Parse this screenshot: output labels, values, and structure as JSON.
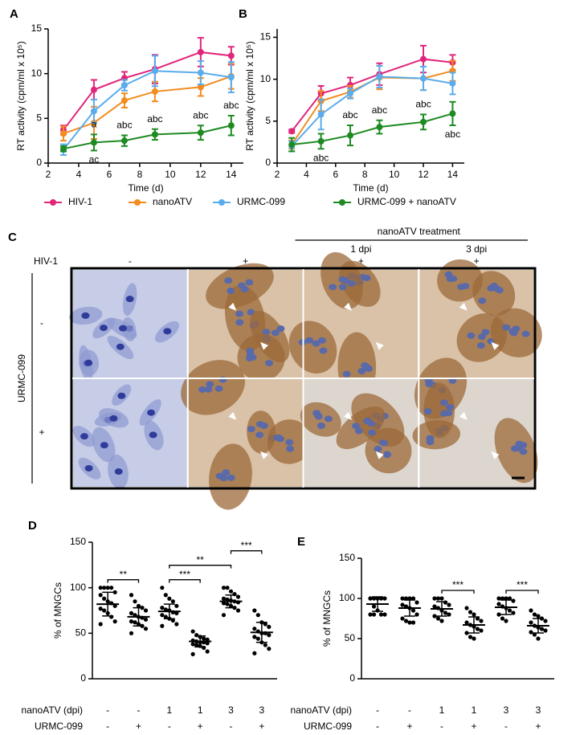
{
  "chart_data": [
    {
      "type": "line",
      "label": "A",
      "xlabel": "Time (d)",
      "ylabel": "RT activity (cpm/ml x 10⁵)",
      "x": [
        3,
        5,
        7,
        9,
        12,
        14
      ],
      "xlim": [
        2,
        14.8
      ],
      "xticks": [
        2,
        4,
        6,
        8,
        10,
        12,
        14
      ],
      "ylim": [
        0,
        15
      ],
      "yticks": [
        0,
        5,
        10,
        15
      ],
      "series": [
        {
          "name": "HIV-1",
          "color": "#e0267a",
          "values": [
            3.7,
            8.2,
            9.5,
            10.5,
            12.4,
            12.0
          ],
          "errors": [
            0.5,
            1.1,
            0.7,
            1.6,
            1.6,
            1.0
          ]
        },
        {
          "name": "nanoATV",
          "color": "#f28c1e",
          "values": [
            3.3,
            4.5,
            7.0,
            8.0,
            8.5,
            9.7
          ],
          "errors": [
            0.8,
            1.8,
            0.8,
            1.1,
            1.0,
            1.4
          ]
        },
        {
          "name": "URMC-099",
          "color": "#5aacec",
          "values": [
            1.5,
            5.8,
            8.7,
            10.3,
            10.1,
            9.6
          ],
          "errors": [
            0.6,
            1.3,
            0.6,
            1.7,
            1.3,
            1.7
          ]
        },
        {
          "name": "URMC-099 + nanoATV",
          "color": "#1e8a22",
          "values": [
            1.6,
            2.3,
            2.5,
            3.2,
            3.4,
            4.2
          ],
          "errors": [
            0.3,
            0.9,
            0.6,
            0.6,
            0.8,
            1.1
          ]
        }
      ],
      "annotations": [
        {
          "text": "a",
          "x": 5,
          "position": "above"
        },
        {
          "text": "ac",
          "x": 5,
          "position": "below"
        },
        {
          "text": "abc",
          "x": 7,
          "position": "above"
        },
        {
          "text": "abc",
          "x": 9,
          "position": "above"
        },
        {
          "text": "abc",
          "x": 12,
          "position": "above"
        },
        {
          "text": "abc",
          "x": 14,
          "position": "above"
        }
      ]
    },
    {
      "type": "line",
      "label": "B",
      "xlabel": "Time (d)",
      "ylabel": "RT activity (cpm/ml x 10⁵)",
      "x": [
        3,
        5,
        7,
        9,
        12,
        14
      ],
      "xlim": [
        2,
        14.8
      ],
      "xticks": [
        2,
        4,
        6,
        8,
        10,
        12,
        14
      ],
      "ylim": [
        0,
        16
      ],
      "yticks": [
        0,
        5,
        10,
        15
      ],
      "series": [
        {
          "color": "#e0267a",
          "values": [
            3.8,
            8.3,
            9.3,
            10.6,
            12.4,
            12.0
          ],
          "errors": [
            0.2,
            0.9,
            0.9,
            1.3,
            1.6,
            0.9
          ]
        },
        {
          "color": "#f28c1e",
          "values": [
            2.2,
            7.4,
            8.5,
            10.2,
            10.1,
            11.0
          ],
          "errors": [
            0.5,
            1.2,
            0.7,
            1.4,
            1.4,
            1.2
          ]
        },
        {
          "color": "#5aacec",
          "values": [
            2.0,
            5.8,
            8.3,
            10.3,
            10.1,
            9.5
          ],
          "errors": [
            0.6,
            1.8,
            0.6,
            1.3,
            1.4,
            1.3
          ]
        },
        {
          "color": "#1e8a22",
          "values": [
            2.2,
            2.6,
            3.3,
            4.3,
            4.9,
            5.9
          ],
          "errors": [
            0.8,
            0.9,
            1.2,
            0.8,
            0.9,
            1.4
          ]
        }
      ],
      "annotations": [
        {
          "text": "abc",
          "x": 5,
          "position": "below"
        },
        {
          "text": "abc",
          "x": 7,
          "position": "above"
        },
        {
          "text": "abc",
          "x": 9,
          "position": "above"
        },
        {
          "text": "abc",
          "x": 12,
          "position": "above"
        },
        {
          "text": "abc",
          "x": 14,
          "position": "below"
        }
      ]
    },
    {
      "type": "dot",
      "label": "D",
      "ylabel": "% of MNGCs",
      "ylim": [
        0,
        150
      ],
      "yticks": [
        0,
        50,
        100,
        150
      ],
      "rows": [
        {
          "name": "nanoATV (dpi)",
          "labels": [
            "-",
            "-",
            "1",
            "1",
            "3",
            "3"
          ]
        },
        {
          "name": "URMC-099",
          "labels": [
            "-",
            "+",
            "-",
            "+",
            "-",
            "+"
          ]
        }
      ],
      "groups": [
        {
          "values": [
            100,
            100,
            100,
            100,
            95,
            92,
            88,
            85,
            83,
            80,
            77,
            75,
            72,
            68,
            63,
            60
          ],
          "mean": 82,
          "sd": 13
        },
        {
          "values": [
            92,
            85,
            80,
            78,
            75,
            72,
            70,
            68,
            67,
            65,
            63,
            62,
            60,
            58,
            55,
            50
          ],
          "mean": 68,
          "sd": 10
        },
        {
          "values": [
            100,
            92,
            88,
            85,
            80,
            78,
            76,
            75,
            73,
            72,
            70,
            68,
            66,
            64,
            60,
            58
          ],
          "mean": 74,
          "sd": 8
        },
        {
          "values": [
            52,
            48,
            46,
            44,
            43,
            42,
            41,
            40,
            40,
            39,
            38,
            37,
            36,
            34,
            30,
            27
          ],
          "mean": 41,
          "sd": 6
        },
        {
          "values": [
            100,
            100,
            96,
            93,
            90,
            88,
            87,
            86,
            85,
            84,
            83,
            82,
            80,
            78,
            75,
            70
          ],
          "mean": 85,
          "sd": 7
        },
        {
          "values": [
            75,
            70,
            62,
            60,
            57,
            55,
            52,
            50,
            50,
            48,
            46,
            44,
            40,
            37,
            33,
            28
          ],
          "mean": 51,
          "sd": 11
        }
      ],
      "significance": [
        {
          "text": "**",
          "from": 0,
          "to": 1
        },
        {
          "text": "***",
          "from": 2,
          "to": 3
        },
        {
          "text": "**",
          "from": 2,
          "to": 4
        },
        {
          "text": "***",
          "from": 4,
          "to": 5
        }
      ]
    },
    {
      "type": "dot",
      "label": "E",
      "ylabel": "% of MNGCs",
      "ylim": [
        0,
        150
      ],
      "yticks": [
        0,
        50,
        100,
        150
      ],
      "rows": [
        {
          "name": "nanoATV (dpi)",
          "labels": [
            "-",
            "-",
            "1",
            "1",
            "3",
            "3"
          ]
        },
        {
          "name": "URMC-099",
          "labels": [
            "-",
            "+",
            "-",
            "+",
            "-",
            "+"
          ]
        }
      ],
      "groups": [
        {
          "values": [
            100,
            100,
            100,
            100,
            100,
            100,
            90,
            85,
            80,
            80,
            80,
            80
          ],
          "mean": 93,
          "sd": 9
        },
        {
          "values": [
            100,
            100,
            100,
            100,
            95,
            92,
            90,
            88,
            85,
            80,
            75,
            72,
            70,
            70
          ],
          "mean": 88,
          "sd": 10
        },
        {
          "values": [
            100,
            100,
            100,
            95,
            92,
            90,
            88,
            85,
            82,
            80,
            78,
            75,
            72
          ],
          "mean": 87,
          "sd": 9
        },
        {
          "values": [
            88,
            83,
            80,
            75,
            72,
            70,
            67,
            65,
            62,
            60,
            57,
            52,
            50
          ],
          "mean": 67,
          "sd": 10
        },
        {
          "values": [
            100,
            100,
            100,
            100,
            97,
            93,
            90,
            88,
            85,
            82,
            80,
            75,
            72
          ],
          "mean": 89,
          "sd": 9
        },
        {
          "values": [
            85,
            80,
            78,
            75,
            72,
            70,
            66,
            64,
            62,
            60,
            58,
            55,
            50
          ],
          "mean": 66,
          "sd": 9
        }
      ],
      "significance": [
        {
          "text": "***",
          "from": 2,
          "to": 3
        },
        {
          "text": "***",
          "from": 4,
          "to": 5
        }
      ]
    }
  ],
  "micrograph": {
    "label": "C",
    "header": "nanoATV treatment",
    "subheaders": [
      "1 dpi",
      "3 dpi"
    ],
    "column_label": "HIV-1",
    "columns": [
      "-",
      "+",
      "+",
      "+"
    ],
    "row_label": "URMC-099",
    "rows": [
      "-",
      "+"
    ]
  }
}
